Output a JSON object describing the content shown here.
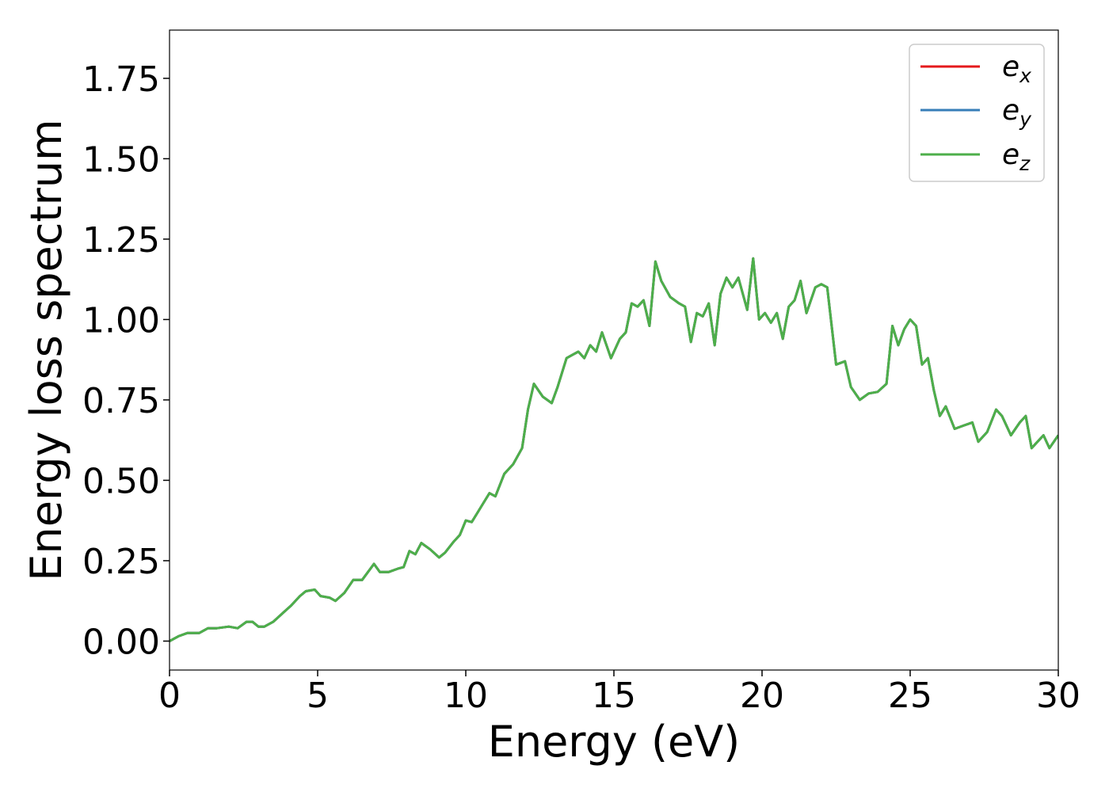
{
  "chart_data": {
    "type": "line",
    "title": "",
    "xlabel": "Energy (eV)",
    "ylabel": "Energy loss spectrum",
    "xlim": [
      0,
      30
    ],
    "ylim": [
      -0.09,
      1.9
    ],
    "xticks": [
      0,
      5,
      10,
      15,
      20,
      25,
      30
    ],
    "xtick_labels": [
      "0",
      "5",
      "10",
      "15",
      "20",
      "25",
      "30"
    ],
    "yticks": [
      0,
      0.25,
      0.5,
      0.75,
      1.0,
      1.25,
      1.5,
      1.75
    ],
    "ytick_labels": [
      "0.00",
      "0.25",
      "0.50",
      "0.75",
      "1.00",
      "1.25",
      "1.50",
      "1.75"
    ],
    "grid": false,
    "legend_position": "top-right",
    "legend": [
      {
        "base": "e",
        "sub": "x",
        "color": "#e41a1c"
      },
      {
        "base": "e",
        "sub": "y",
        "color": "#377eb8"
      },
      {
        "base": "e",
        "sub": "z",
        "color": "#4daf4a"
      }
    ],
    "note": "All three series are identical; only e_z (green) is visible on top.",
    "x": [
      0,
      0.3,
      0.6,
      1.0,
      1.3,
      1.6,
      2.0,
      2.3,
      2.6,
      2.8,
      3.0,
      3.2,
      3.5,
      3.8,
      4.1,
      4.4,
      4.6,
      4.9,
      5.1,
      5.4,
      5.6,
      5.9,
      6.2,
      6.5,
      6.9,
      7.1,
      7.4,
      7.7,
      7.9,
      8.1,
      8.3,
      8.5,
      8.8,
      9.1,
      9.3,
      9.6,
      9.8,
      10.0,
      10.2,
      10.4,
      10.6,
      10.8,
      11.0,
      11.3,
      11.6,
      11.9,
      12.1,
      12.3,
      12.6,
      12.9,
      13.1,
      13.4,
      13.6,
      13.8,
      14.0,
      14.2,
      14.4,
      14.6,
      14.9,
      15.2,
      15.4,
      15.6,
      15.8,
      16.0,
      16.2,
      16.4,
      16.6,
      16.9,
      17.2,
      17.4,
      17.6,
      17.8,
      18.0,
      18.2,
      18.4,
      18.6,
      18.8,
      19.0,
      19.2,
      19.5,
      19.7,
      19.9,
      20.1,
      20.3,
      20.5,
      20.7,
      20.9,
      21.1,
      21.3,
      21.5,
      21.8,
      22.0,
      22.2,
      22.5,
      22.8,
      23.0,
      23.3,
      23.6,
      23.9,
      24.2,
      24.4,
      24.6,
      24.8,
      25.0,
      25.2,
      25.4,
      25.6,
      25.8,
      26.0,
      26.2,
      26.5,
      26.8,
      27.1,
      27.3,
      27.6,
      27.9,
      28.1,
      28.4,
      28.7,
      28.9,
      29.1,
      29.3,
      29.5,
      29.7,
      30.0
    ],
    "series": [
      {
        "name": "e_x",
        "color": "#e41a1c",
        "values": [
          0.0,
          0.015,
          0.025,
          0.025,
          0.04,
          0.04,
          0.045,
          0.04,
          0.06,
          0.06,
          0.045,
          0.045,
          0.06,
          0.085,
          0.11,
          0.14,
          0.155,
          0.16,
          0.14,
          0.135,
          0.125,
          0.15,
          0.19,
          0.19,
          0.24,
          0.215,
          0.215,
          0.225,
          0.23,
          0.28,
          0.27,
          0.305,
          0.285,
          0.26,
          0.275,
          0.31,
          0.33,
          0.375,
          0.37,
          0.4,
          0.43,
          0.46,
          0.45,
          0.52,
          0.55,
          0.6,
          0.72,
          0.8,
          0.76,
          0.74,
          0.79,
          0.88,
          0.89,
          0.9,
          0.88,
          0.92,
          0.9,
          0.96,
          0.88,
          0.94,
          0.96,
          1.05,
          1.04,
          1.06,
          0.98,
          1.18,
          1.12,
          1.07,
          1.05,
          1.04,
          0.93,
          1.02,
          1.01,
          1.05,
          0.92,
          1.08,
          1.13,
          1.1,
          1.13,
          1.03,
          1.19,
          1.0,
          1.02,
          0.99,
          1.02,
          0.94,
          1.04,
          1.06,
          1.12,
          1.02,
          1.1,
          1.11,
          1.1,
          0.86,
          0.87,
          0.79,
          0.75,
          0.77,
          0.775,
          0.8,
          0.98,
          0.92,
          0.97,
          1.0,
          0.98,
          0.86,
          0.88,
          0.78,
          0.7,
          0.73,
          0.66,
          0.67,
          0.68,
          0.62,
          0.65,
          0.72,
          0.7,
          0.64,
          0.68,
          0.7,
          0.6,
          0.62,
          0.64,
          0.6,
          0.64
        ]
      },
      {
        "name": "e_y",
        "color": "#377eb8",
        "values": [
          0.0,
          0.015,
          0.025,
          0.025,
          0.04,
          0.04,
          0.045,
          0.04,
          0.06,
          0.06,
          0.045,
          0.045,
          0.06,
          0.085,
          0.11,
          0.14,
          0.155,
          0.16,
          0.14,
          0.135,
          0.125,
          0.15,
          0.19,
          0.19,
          0.24,
          0.215,
          0.215,
          0.225,
          0.23,
          0.28,
          0.27,
          0.305,
          0.285,
          0.26,
          0.275,
          0.31,
          0.33,
          0.375,
          0.37,
          0.4,
          0.43,
          0.46,
          0.45,
          0.52,
          0.55,
          0.6,
          0.72,
          0.8,
          0.76,
          0.74,
          0.79,
          0.88,
          0.89,
          0.9,
          0.88,
          0.92,
          0.9,
          0.96,
          0.88,
          0.94,
          0.96,
          1.05,
          1.04,
          1.06,
          0.98,
          1.18,
          1.12,
          1.07,
          1.05,
          1.04,
          0.93,
          1.02,
          1.01,
          1.05,
          0.92,
          1.08,
          1.13,
          1.1,
          1.13,
          1.03,
          1.19,
          1.0,
          1.02,
          0.99,
          1.02,
          0.94,
          1.04,
          1.06,
          1.12,
          1.02,
          1.1,
          1.11,
          1.1,
          0.86,
          0.87,
          0.79,
          0.75,
          0.77,
          0.775,
          0.8,
          0.98,
          0.92,
          0.97,
          1.0,
          0.98,
          0.86,
          0.88,
          0.78,
          0.7,
          0.73,
          0.66,
          0.67,
          0.68,
          0.62,
          0.65,
          0.72,
          0.7,
          0.64,
          0.68,
          0.7,
          0.6,
          0.62,
          0.64,
          0.6,
          0.64
        ]
      },
      {
        "name": "e_z",
        "color": "#4daf4a",
        "values": [
          0.0,
          0.015,
          0.025,
          0.025,
          0.04,
          0.04,
          0.045,
          0.04,
          0.06,
          0.06,
          0.045,
          0.045,
          0.06,
          0.085,
          0.11,
          0.14,
          0.155,
          0.16,
          0.14,
          0.135,
          0.125,
          0.15,
          0.19,
          0.19,
          0.24,
          0.215,
          0.215,
          0.225,
          0.23,
          0.28,
          0.27,
          0.305,
          0.285,
          0.26,
          0.275,
          0.31,
          0.33,
          0.375,
          0.37,
          0.4,
          0.43,
          0.46,
          0.45,
          0.52,
          0.55,
          0.6,
          0.72,
          0.8,
          0.76,
          0.74,
          0.79,
          0.88,
          0.89,
          0.9,
          0.88,
          0.92,
          0.9,
          0.96,
          0.88,
          0.94,
          0.96,
          1.05,
          1.04,
          1.06,
          0.98,
          1.18,
          1.12,
          1.07,
          1.05,
          1.04,
          0.93,
          1.02,
          1.01,
          1.05,
          0.92,
          1.08,
          1.13,
          1.1,
          1.13,
          1.03,
          1.19,
          1.0,
          1.02,
          0.99,
          1.02,
          0.94,
          1.04,
          1.06,
          1.12,
          1.02,
          1.1,
          1.11,
          1.1,
          0.86,
          0.87,
          0.79,
          0.75,
          0.77,
          0.775,
          0.8,
          0.98,
          0.92,
          0.97,
          1.0,
          0.98,
          0.86,
          0.88,
          0.78,
          0.7,
          0.73,
          0.66,
          0.67,
          0.68,
          0.62,
          0.65,
          0.72,
          0.7,
          0.64,
          0.68,
          0.7,
          0.6,
          0.62,
          0.64,
          0.6,
          0.64
        ]
      }
    ]
  }
}
